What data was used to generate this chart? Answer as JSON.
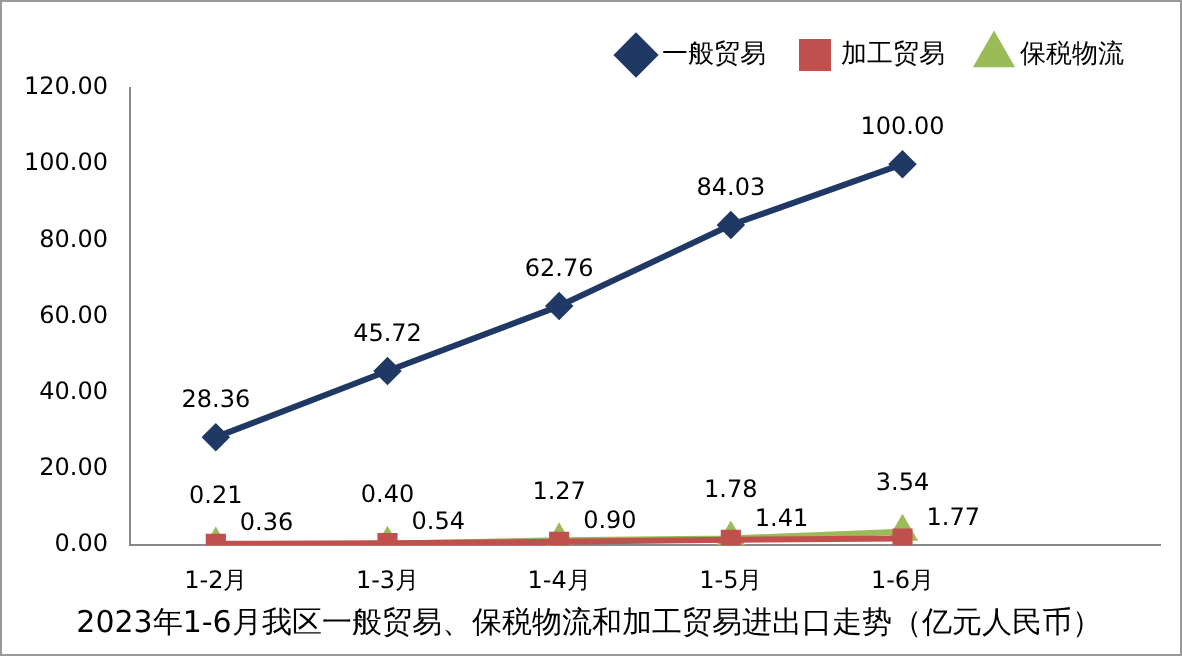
{
  "chart_data": {
    "type": "line",
    "title": "2023年1-6月我区一般贸易、保税物流和加工贸易进出口走势（亿元人民币）",
    "categories": [
      "1-2月",
      "1-3月",
      "1-4月",
      "1-5月",
      "1-6月",
      null
    ],
    "series": [
      {
        "name": "一般贸易",
        "color": "#1f3864",
        "marker": "diamond",
        "values": [
          28.36,
          45.72,
          62.76,
          84.03,
          100,
          null
        ],
        "value_labels": [
          "28.36",
          "45.72",
          "62.76",
          "84.03",
          "100.00",
          null
        ]
      },
      {
        "name": "加工贸易",
        "color": "#c0504d",
        "marker": "square",
        "values": [
          0.36,
          0.54,
          0.9,
          1.41,
          1.77,
          null
        ],
        "value_labels": [
          "0.36",
          "0.54",
          "0.90",
          "1.41",
          "1.77",
          null
        ]
      },
      {
        "name": "保税物流",
        "color": "#9bbb59",
        "marker": "triangle",
        "values": [
          0.21,
          0.4,
          1.27,
          1.78,
          3.54,
          null
        ],
        "value_labels": [
          "0.21",
          "0.40",
          "1.27",
          "1.78",
          "3.54",
          null
        ]
      }
    ],
    "ylim": [
      0,
      120
    ],
    "yticks": [
      {
        "value": 0,
        "label": "0.00"
      },
      {
        "value": 20,
        "label": "20.00"
      },
      {
        "value": 40,
        "label": "40.00"
      },
      {
        "value": 60,
        "label": "60.00"
      },
      {
        "value": 80,
        "label": "80.00"
      },
      {
        "value": 100,
        "label": "100.00"
      },
      {
        "value": 120,
        "label": "120.00"
      }
    ],
    "grid": false,
    "legend": "top",
    "line_style": "solid"
  }
}
